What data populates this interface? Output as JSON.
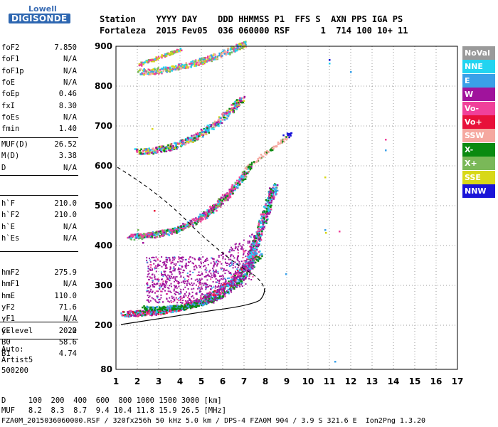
{
  "logo": {
    "top": "Lowell",
    "bottom": "DIGISONDE"
  },
  "header": {
    "row1": "Station    YYYY DAY    DDD HHMMSS P1  FFS S  AXN PPS IGA PS",
    "row2": "Fortaleza  2015 Fev05  036 060000 RSF      1  714 100 10+ 11"
  },
  "params_group1": [
    {
      "key": "foF2",
      "value": "7.850"
    },
    {
      "key": "foF1",
      "value": "N/A"
    },
    {
      "key": "foF1p",
      "value": "N/A"
    },
    {
      "key": "foE",
      "value": "N/A"
    },
    {
      "key": "foEp",
      "value": "0.46"
    },
    {
      "key": "fxI",
      "value": "8.30"
    },
    {
      "key": "foEs",
      "value": "N/A"
    },
    {
      "key": "fmin",
      "value": "1.40"
    }
  ],
  "params_group2": [
    {
      "key": "MUF(D)",
      "value": "26.52"
    },
    {
      "key": "M(D)",
      "value": "3.38"
    },
    {
      "key": "D",
      "value": "N/A"
    }
  ],
  "params_group3": [
    {
      "key": "h`F",
      "value": "210.0"
    },
    {
      "key": "h`F2",
      "value": "210.0"
    },
    {
      "key": "h`E",
      "value": "N/A"
    },
    {
      "key": "h`Es",
      "value": "N/A"
    }
  ],
  "params_group4": [
    {
      "key": "hmF2",
      "value": "275.9"
    },
    {
      "key": "hmF1",
      "value": "N/A"
    },
    {
      "key": "hmE",
      "value": "110.0"
    },
    {
      "key": "yF2",
      "value": "71.6"
    },
    {
      "key": "yF1",
      "value": "N/A"
    },
    {
      "key": "yE",
      "value": "20.0"
    },
    {
      "key": "B0",
      "value": "58.6"
    },
    {
      "key": "B1",
      "value": "4.74"
    }
  ],
  "params_group5": [
    {
      "key": "C-level",
      "value": "22"
    }
  ],
  "auto": {
    "line1": "Auto:",
    "line2": "Artist5",
    "line3": "500200"
  },
  "legend": [
    {
      "label": "NoVal",
      "color": "#9a9a9a"
    },
    {
      "label": "NNE",
      "color": "#22d4f0"
    },
    {
      "label": "E",
      "color": "#3aa0e8"
    },
    {
      "label": "W",
      "color": "#a0139c"
    },
    {
      "label": "Vo-",
      "color": "#f0409a"
    },
    {
      "label": "Vo+",
      "color": "#e8103a"
    },
    {
      "label": "SSW",
      "color": "#f5a8a0"
    },
    {
      "label": "X-",
      "color": "#0a8a10"
    },
    {
      "label": "X+",
      "color": "#7ab858"
    },
    {
      "label": "SSE",
      "color": "#d8d818"
    },
    {
      "label": "NNW",
      "color": "#1a14d8"
    }
  ],
  "axis": {
    "x_ticks": [
      "1",
      "2",
      "3",
      "4",
      "5",
      "6",
      "7",
      "8",
      "9",
      "10",
      "11",
      "12",
      "13",
      "14",
      "15",
      "16",
      "17"
    ],
    "y_ticks": [
      "900",
      "800",
      "700",
      "600",
      "500",
      "400",
      "300",
      "200",
      "80"
    ]
  },
  "bottom": {
    "line1": "D     100  200  400  600  800 1000 1500 3000 [km]",
    "line2": "MUF   8.2  8.3  8.7  9.4 10.4 11.8 15.9 26.5 [MHz]",
    "line3": "FZA0M_2015036060000.RSF / 320fx256h 50 kHz 5.0 km / DPS-4 FZA0M 904 / 3.9 S 321.6 E  Ion2Png 1.3.20"
  }
}
